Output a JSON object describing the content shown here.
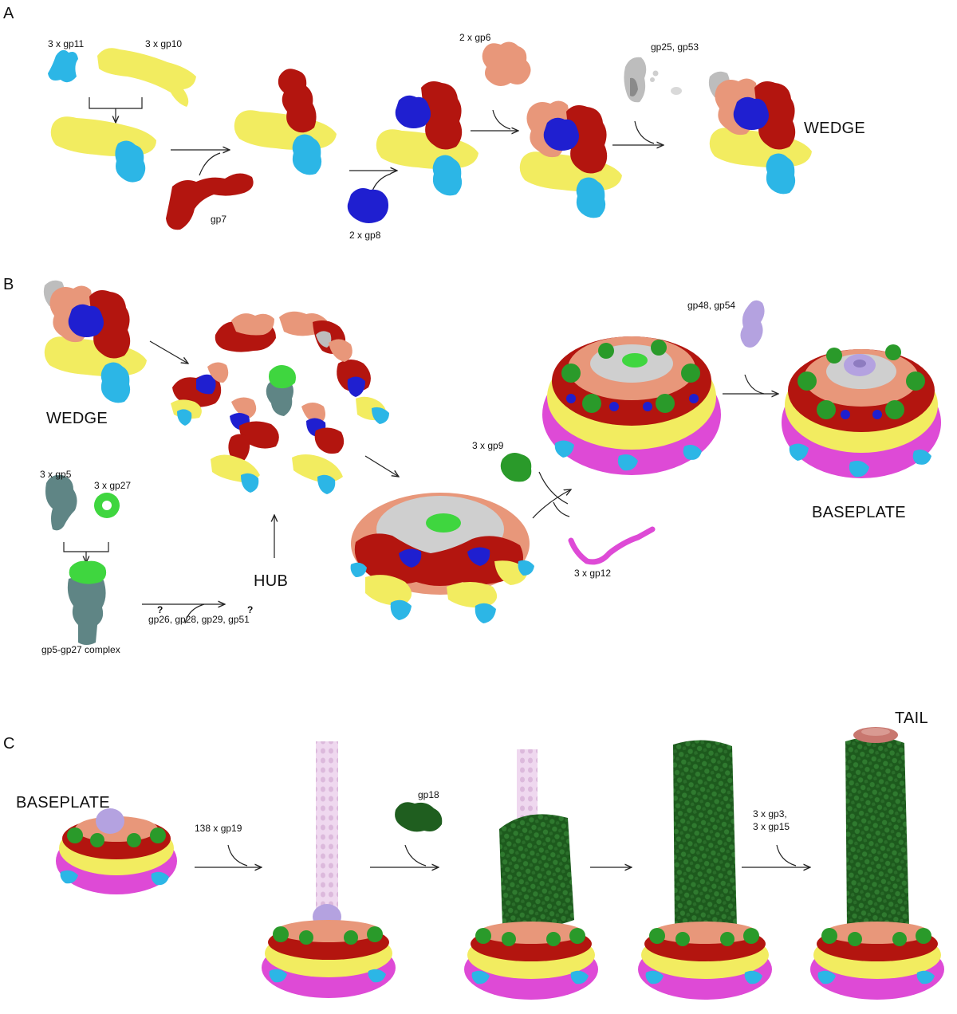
{
  "panels": [
    "A",
    "B",
    "C"
  ],
  "panel_a": {
    "labels": {
      "gp11": "3 x gp11",
      "gp10": "3 x gp10",
      "gp7": "gp7",
      "gp8": "2 x gp8",
      "gp6": "2 x gp6",
      "gp25_gp53": "gp25, gp53",
      "wedge": "WEDGE"
    }
  },
  "panel_b": {
    "labels": {
      "wedge": "WEDGE",
      "gp5": "3 x gp5",
      "gp27": "3 x gp27",
      "complex": "gp5-gp27 complex",
      "hub_factors": "gp26, gp28, gp29, gp51",
      "question_mark": "?",
      "hub": "HUB",
      "gp9": "3 x gp9",
      "gp12": "3 x gp12",
      "gp48_gp54": "gp48, gp54",
      "baseplate": "BASEPLATE"
    }
  },
  "panel_c": {
    "labels": {
      "baseplate": "BASEPLATE",
      "gp19": "138 x gp19",
      "gp18": "gp18",
      "gp3": "3 x gp3,",
      "gp15": "3 x gp15",
      "tail": "TAIL"
    }
  },
  "colors": {
    "gp11": "#2cb6e6",
    "gp10": "#f2ec60",
    "gp7": "#b3150f",
    "gp8": "#1f1fd0",
    "gp6": "#e8977a",
    "gp25_gp53": "#bdbdbd",
    "gp5": "#5f8585",
    "gp27": "#3fd63f",
    "gp9": "#2a9a2a",
    "gp12": "#de4ad6",
    "gp48_gp54": "#b4a2e0",
    "gp19": "#efd6ef",
    "gp18": "#1f5e1f",
    "gp3_gp15": "#c8776f"
  }
}
